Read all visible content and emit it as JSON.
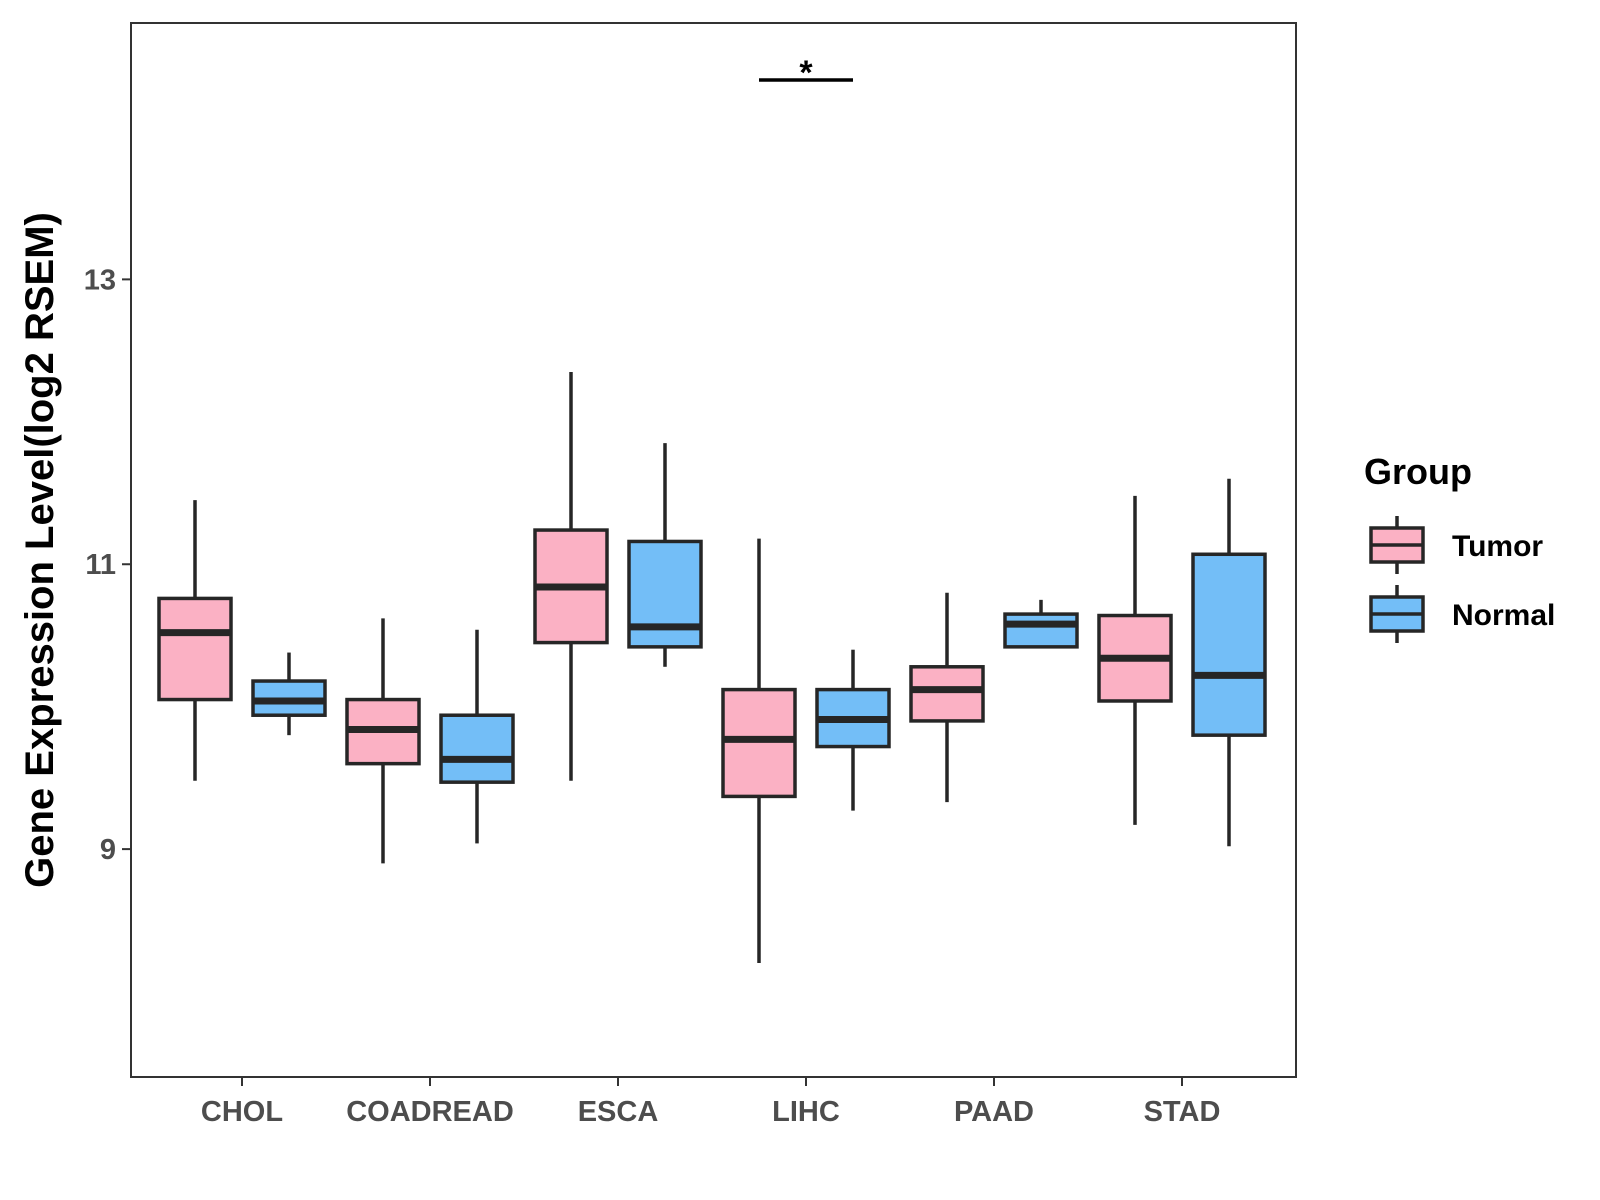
{
  "chart_data": {
    "type": "boxplot",
    "title": "",
    "xlabel": "",
    "ylabel": "Gene Expression Level(log2 RSEM)",
    "ylim": [
      7.4,
      14.8
    ],
    "yticks": [
      9,
      11,
      13
    ],
    "grid": false,
    "legend_title": "Group",
    "legend_position": "right",
    "categories": [
      "CHOL",
      "COADREAD",
      "ESCA",
      "LIHC",
      "PAAD",
      "STAD"
    ],
    "series": [
      {
        "name": "Tumor",
        "color": "#fbb1c4",
        "boxes": [
          {
            "min": 9.48,
            "q1": 10.05,
            "median": 10.52,
            "q3": 10.76,
            "max": 11.45
          },
          {
            "min": 8.9,
            "q1": 9.6,
            "median": 9.84,
            "q3": 10.05,
            "max": 10.62
          },
          {
            "min": 9.48,
            "q1": 10.45,
            "median": 10.84,
            "q3": 11.24,
            "max": 12.35
          },
          {
            "min": 8.2,
            "q1": 9.37,
            "median": 9.77,
            "q3": 10.12,
            "max": 11.18
          },
          {
            "min": 9.33,
            "q1": 9.9,
            "median": 10.12,
            "q3": 10.28,
            "max": 10.8
          },
          {
            "min": 9.17,
            "q1": 10.04,
            "median": 10.34,
            "q3": 10.64,
            "max": 11.48
          }
        ]
      },
      {
        "name": "Normal",
        "color": "#73bef7",
        "boxes": [
          {
            "min": 9.8,
            "q1": 9.94,
            "median": 10.04,
            "q3": 10.18,
            "max": 10.38
          },
          {
            "min": 9.04,
            "q1": 9.47,
            "median": 9.63,
            "q3": 9.94,
            "max": 10.54
          },
          {
            "min": 10.28,
            "q1": 10.42,
            "median": 10.56,
            "q3": 11.16,
            "max": 11.85
          },
          {
            "min": 9.27,
            "q1": 9.72,
            "median": 9.91,
            "q3": 10.12,
            "max": 10.4
          },
          {
            "min": 10.42,
            "q1": 10.42,
            "median": 10.58,
            "q3": 10.65,
            "max": 10.75
          },
          {
            "min": 9.02,
            "q1": 9.8,
            "median": 10.22,
            "q3": 11.07,
            "max": 11.6
          }
        ]
      }
    ],
    "annotations": [
      {
        "category": "LIHC",
        "label": "*",
        "y": 14.4
      }
    ]
  }
}
